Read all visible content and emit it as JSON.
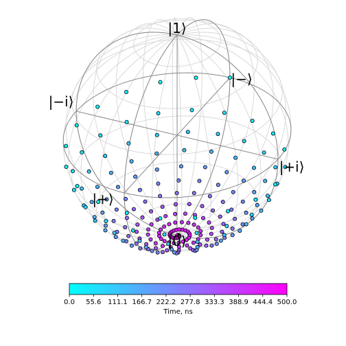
{
  "chart_data": {
    "type": "scatter",
    "title": "",
    "projection": "bloch-sphere",
    "axis_labels": {
      "z_plus": "|1⟩",
      "z_minus": "|0⟩",
      "x_plus": "|+⟩",
      "x_minus": "|−⟩",
      "y_plus": "|+i⟩",
      "y_minus": "|−i⟩"
    },
    "trajectory": {
      "parameter": "time",
      "t_range": [
        0,
        500
      ],
      "turns": 11,
      "polar_angle_start_deg": 90,
      "polar_angle_end_deg": 180,
      "point_count": 220,
      "marker_edge_color": "#000000"
    },
    "colorbar": {
      "label": "Time, ns",
      "min": 0.0,
      "max": 500.0,
      "ticks": [
        "0.0",
        "55.6",
        "111.1",
        "166.7",
        "222.2",
        "277.8",
        "333.3",
        "388.9",
        "444.4",
        "500.0"
      ],
      "color_min": "#00ffff",
      "color_max": "#ff00ff",
      "orientation": "horizontal"
    },
    "grid": true
  }
}
